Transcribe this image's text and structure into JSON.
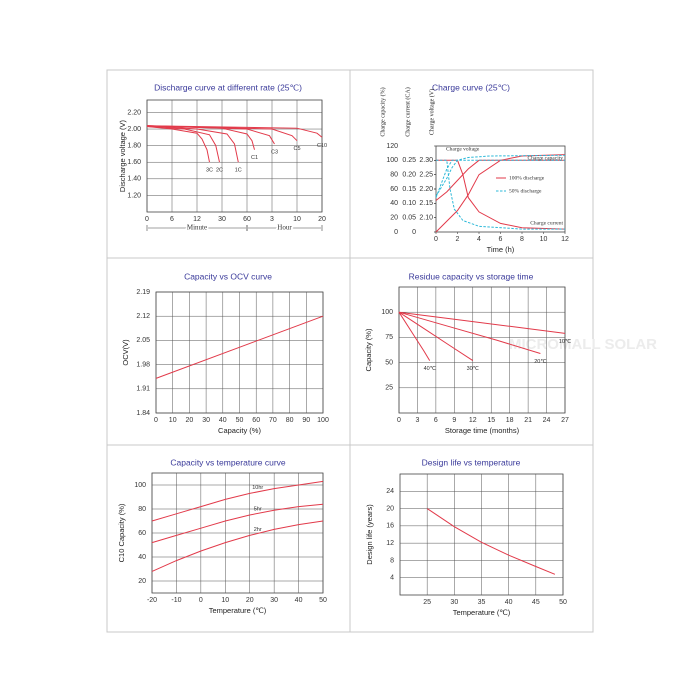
{
  "watermark": "MICROMALL SOLAR",
  "chart_data": [
    {
      "type": "line",
      "title": "Discharge curve at different rate (25℃)",
      "ylabel": "Discharge voltage (V)",
      "xgroups": [
        "Minute",
        "Hour"
      ],
      "grid": true,
      "xlim": [
        0,
        7
      ],
      "xticks": [
        0,
        {
          "value": 1,
          "label": "6"
        },
        {
          "value": 2,
          "label": "12"
        },
        {
          "value": 3,
          "label": "30"
        },
        {
          "value": 4,
          "label": "60"
        },
        {
          "value": 5,
          "label": "3"
        },
        {
          "value": 6,
          "label": "10"
        },
        {
          "value": 7,
          "label": "20"
        }
      ],
      "ylim": [
        1.0,
        2.35
      ],
      "yticks": [
        {
          "value": 1.2,
          "label": "1.20"
        },
        {
          "value": 1.4,
          "label": "1.40"
        },
        {
          "value": 1.6,
          "label": "1.60"
        },
        {
          "value": 1.8,
          "label": "1.80"
        },
        {
          "value": 2,
          "label": "2.00"
        },
        {
          "value": 2.2,
          "label": "2.20"
        }
      ],
      "series": [
        {
          "name": "3C",
          "color": "#e23a4a",
          "x": [
            0,
            1,
            2,
            2.2,
            2.4,
            2.5
          ],
          "values": [
            2.03,
            2.0,
            1.95,
            1.88,
            1.75,
            1.6
          ]
        },
        {
          "name": "2C",
          "color": "#e23a4a",
          "x": [
            0,
            1.5,
            2.5,
            2.75,
            2.9
          ],
          "values": [
            2.03,
            2.0,
            1.93,
            1.8,
            1.6
          ]
        },
        {
          "name": "1C",
          "color": "#e23a4a",
          "x": [
            0,
            2,
            3.2,
            3.5,
            3.65
          ],
          "values": [
            2.04,
            2.0,
            1.94,
            1.82,
            1.6
          ]
        },
        {
          "name": "C1",
          "color": "#e23a4a",
          "x": [
            0,
            3,
            4,
            4.2,
            4.3
          ],
          "values": [
            2.04,
            2.01,
            1.94,
            1.86,
            1.75
          ]
        },
        {
          "name": "C3",
          "color": "#e23a4a",
          "x": [
            0,
            4,
            4.9,
            5.1
          ],
          "values": [
            2.04,
            2.0,
            1.92,
            1.82
          ]
        },
        {
          "name": "C5",
          "color": "#e23a4a",
          "x": [
            0,
            5,
            5.8,
            6.0
          ],
          "values": [
            2.04,
            2.0,
            1.92,
            1.86
          ]
        },
        {
          "name": "C10",
          "color": "#e23a4a",
          "x": [
            0,
            6,
            6.8,
            7
          ],
          "values": [
            2.04,
            2.01,
            1.95,
            1.9
          ]
        }
      ]
    },
    {
      "type": "line",
      "title": "Charge curve (25℃)",
      "xlabel": "Time (h)",
      "ylabel": "Charge capacity (%)",
      "y2label": "Charge current (CA)",
      "y3label": "Charge voltage (V)",
      "grid": false,
      "xlim": [
        0,
        12
      ],
      "xticks": [
        0,
        2,
        4,
        6,
        8,
        10,
        12
      ],
      "ylim": [
        0,
        120
      ],
      "yticks": [
        0,
        20,
        40,
        60,
        80,
        100,
        120
      ],
      "y2lim": [
        0,
        0.3
      ],
      "y2ticks": [
        0,
        0.05,
        {
          "value": 0.1,
          "label": "0.10"
        },
        0.15,
        {
          "value": 0.2,
          "label": "0.20"
        },
        0.25
      ],
      "y3lim": [
        2.05,
        2.35
      ],
      "y3ticks": [
        {
          "value": 2.1,
          "label": "2.10"
        },
        2.15,
        {
          "value": 2.2,
          "label": "2.20"
        },
        2.25,
        {
          "value": 2.3,
          "label": "2.30"
        }
      ],
      "legend": [
        {
          "name": "100% discharge",
          "color": "#e23a4a",
          "dash": false
        },
        {
          "name": "50% discharge",
          "color": "#2cb8d8",
          "dash": true
        }
      ],
      "annotations": [
        "Charge voltage",
        "Charge capacity",
        "Charge current"
      ],
      "series": [
        {
          "color": "#e23a4a",
          "x": [
            0,
            2,
            3,
            4,
            6,
            8,
            12
          ],
          "values": [
            0,
            30,
            52,
            80,
            100,
            106,
            108
          ]
        },
        {
          "color": "#e23a4a",
          "axis": "y2",
          "x": [
            0,
            2,
            2.5,
            3,
            4,
            6,
            8,
            12
          ],
          "values": [
            0.25,
            0.25,
            0.2,
            0.12,
            0.07,
            0.03,
            0.015,
            0.01
          ]
        },
        {
          "color": "#e23a4a",
          "axis": "y3",
          "x": [
            0,
            1,
            2,
            3,
            4,
            6,
            12
          ],
          "values": [
            2.16,
            2.19,
            2.23,
            2.27,
            2.3,
            2.3,
            2.3
          ]
        },
        {
          "color": "#2cb8d8",
          "dash": true,
          "x": [
            0,
            1,
            1.5,
            2,
            3,
            5,
            12
          ],
          "values": [
            50,
            75,
            90,
            100,
            104,
            106,
            107
          ]
        },
        {
          "color": "#2cb8d8",
          "dash": true,
          "axis": "y2",
          "x": [
            0,
            1,
            1.3,
            1.7,
            2.5,
            4,
            8,
            12
          ],
          "values": [
            0.25,
            0.25,
            0.15,
            0.08,
            0.04,
            0.02,
            0.01,
            0.01
          ]
        },
        {
          "color": "#2cb8d8",
          "dash": true,
          "axis": "y3",
          "x": [
            0,
            0.5,
            1,
            1.5,
            2,
            12
          ],
          "values": [
            2.17,
            2.22,
            2.27,
            2.3,
            2.3,
            2.3
          ]
        }
      ]
    },
    {
      "type": "line",
      "title": "Capacity vs OCV curve",
      "xlabel": "Capacity (%)",
      "ylabel": "OCV(V)",
      "grid": true,
      "xlim": [
        0,
        100
      ],
      "xticks": [
        0,
        10,
        20,
        30,
        40,
        50,
        60,
        70,
        80,
        90,
        100
      ],
      "ylim": [
        1.84,
        2.19
      ],
      "yticks": [
        1.84,
        1.91,
        1.98,
        2.05,
        2.12,
        2.19
      ],
      "series": [
        {
          "color": "#e23a4a",
          "x": [
            0,
            100
          ],
          "values": [
            1.94,
            2.12
          ]
        }
      ]
    },
    {
      "type": "line",
      "title": "Residue capacity vs storage time",
      "xlabel": "Storage time (months)",
      "ylabel": "Capacity (%)",
      "grid": true,
      "xlim": [
        0,
        27
      ],
      "xticks": [
        0,
        3,
        6,
        9,
        12,
        15,
        18,
        21,
        24,
        27
      ],
      "ylim": [
        0,
        125
      ],
      "yticks": [
        25,
        50,
        75,
        100
      ],
      "series": [
        {
          "name": "10℃",
          "color": "#e23a4a",
          "x": [
            0,
            9,
            18,
            27
          ],
          "values": [
            100,
            93,
            86,
            79
          ]
        },
        {
          "name": "20℃",
          "color": "#e23a4a",
          "x": [
            0,
            8,
            16,
            23
          ],
          "values": [
            100,
            86,
            72,
            59
          ]
        },
        {
          "name": "30℃",
          "color": "#e23a4a",
          "x": [
            0,
            4,
            8,
            12
          ],
          "values": [
            100,
            84,
            68,
            52
          ]
        },
        {
          "name": "40℃",
          "color": "#e23a4a",
          "x": [
            0,
            2,
            4,
            5
          ],
          "values": [
            100,
            81,
            62,
            52
          ]
        }
      ]
    },
    {
      "type": "line",
      "title": "Capacity vs temperature curve",
      "xlabel": "Temperature (℃)",
      "ylabel": "C10 Capacity (%)",
      "grid": true,
      "xlim": [
        -20,
        50
      ],
      "xticks": [
        -20,
        -10,
        0,
        10,
        20,
        30,
        40,
        50
      ],
      "ylim": [
        10,
        110
      ],
      "yticks": [
        20,
        40,
        60,
        80,
        100
      ],
      "series": [
        {
          "name": "10hr",
          "color": "#e23a4a",
          "x": [
            -20,
            -10,
            0,
            10,
            20,
            30,
            40,
            50
          ],
          "values": [
            70,
            76,
            82,
            88,
            93,
            97,
            100,
            103
          ]
        },
        {
          "name": "5hr",
          "color": "#e23a4a",
          "x": [
            -20,
            -10,
            0,
            10,
            20,
            30,
            40,
            50
          ],
          "values": [
            52,
            58,
            64,
            70,
            75,
            79,
            82,
            84
          ]
        },
        {
          "name": "2hr",
          "color": "#e23a4a",
          "x": [
            -20,
            -10,
            0,
            10,
            20,
            30,
            40,
            50
          ],
          "values": [
            28,
            37,
            45,
            52,
            58,
            63,
            67,
            70
          ]
        }
      ]
    },
    {
      "type": "line",
      "title": "Design life vs temperature",
      "xlabel": "Temperature (℃)",
      "ylabel": "Design life (years)",
      "grid": true,
      "xlim": [
        20,
        50
      ],
      "xticks": [
        25,
        30,
        35,
        40,
        45,
        50
      ],
      "ylim": [
        0,
        28
      ],
      "yticks": [
        4,
        8,
        12,
        16,
        20,
        24
      ],
      "series": [
        {
          "color": "#e23a4a",
          "x": [
            25,
            30,
            35,
            40,
            45,
            48.5
          ],
          "values": [
            20,
            15.8,
            12.2,
            9.2,
            6.6,
            4.8
          ]
        }
      ]
    }
  ]
}
